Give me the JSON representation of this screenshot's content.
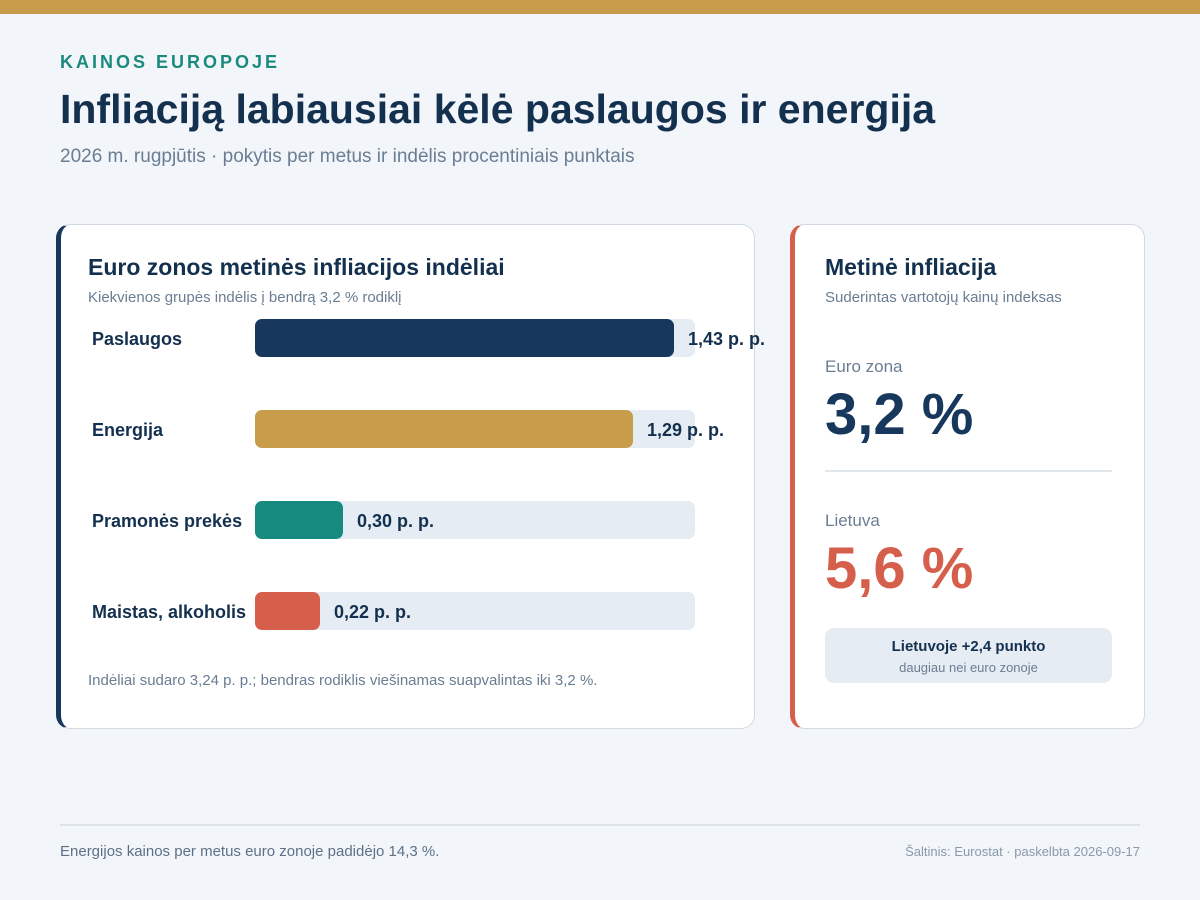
{
  "header": {
    "kicker": "KAINOS EUROPOJE",
    "title": "Infliaciją labiausiai kėlė paslaugos ir energija",
    "subtitle": "2026 m. rugpjūtis · pokytis per metus ir indėlis procentiniais punktais"
  },
  "contributions_card": {
    "title": "Euro zonos metinės infliacijos indėliai",
    "subtitle": "Kiekvienos grupės indėlis į bendrą 3,2 % rodiklį",
    "note": "Indėliai sudaro 3,24 p. p.; bendras rodiklis viešinamas suapvalintas iki 3,2 %."
  },
  "chart_data": {
    "type": "bar",
    "orientation": "horizontal",
    "categories": [
      "Paslaugos",
      "Energija",
      "Pramonės prekės",
      "Maistas, alkoholis"
    ],
    "values": [
      1.43,
      1.29,
      0.3,
      0.22
    ],
    "value_labels": [
      "1,43 p. p.",
      "1,29 p. p.",
      "0,30 p. p.",
      "0,22 p. p."
    ],
    "colors": [
      "#17375c",
      "#c79c4a",
      "#178a80",
      "#d65f4c"
    ],
    "xlim": [
      0,
      1.5
    ],
    "unit": "p. p.",
    "grid": false,
    "legend": "none"
  },
  "inflation_card": {
    "title": "Metinė infliacija",
    "subtitle": "Suderintas vartotojų kainų indeksas",
    "euro_zone": {
      "label": "Euro zona",
      "value": "3,2 %",
      "color": "#17375c"
    },
    "lithuania": {
      "label": "Lietuva",
      "value": "5,6 %",
      "color": "#d65f4c"
    },
    "difference": {
      "main": "Lietuvoje +2,4 punkto",
      "sub": "daugiau nei euro zonoje"
    }
  },
  "footer": {
    "note": "Energijos kainos per metus euro zonoje padidėjo 14,3 %.",
    "source": "Šaltinis: Eurostat · paskelbta 2026-09-17"
  },
  "colors": {
    "accent_gold": "#c79c4a",
    "navy": "#17375c",
    "teal": "#1a8a7e",
    "coral": "#d65f4c",
    "background": "#f2f5f9"
  }
}
